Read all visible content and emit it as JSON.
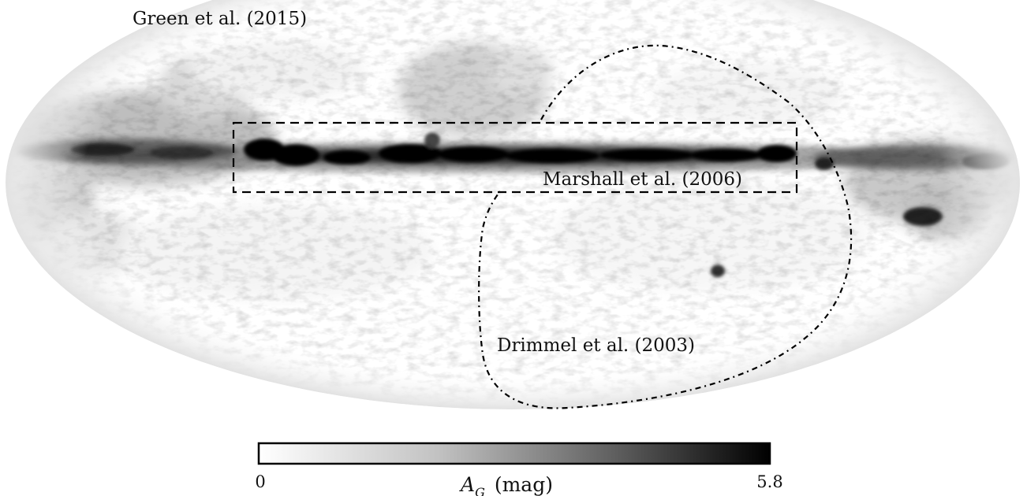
{
  "labels": {
    "survey_green": "Green et al. (2015)",
    "survey_marshall": "Marshall et al. (2006)",
    "survey_drimmel": "Drimmel et al. (2003)"
  },
  "colorbar": {
    "min_label": "0",
    "max_label": "5.8",
    "quantity": "A",
    "subscript": "G",
    "unit": "(mag)",
    "min_value": 0,
    "max_value": 5.8,
    "colormap": "greyscale (white to black)"
  },
  "colors": {
    "background": "#ffffff",
    "dust": "#000000",
    "outline": "#000000"
  }
}
